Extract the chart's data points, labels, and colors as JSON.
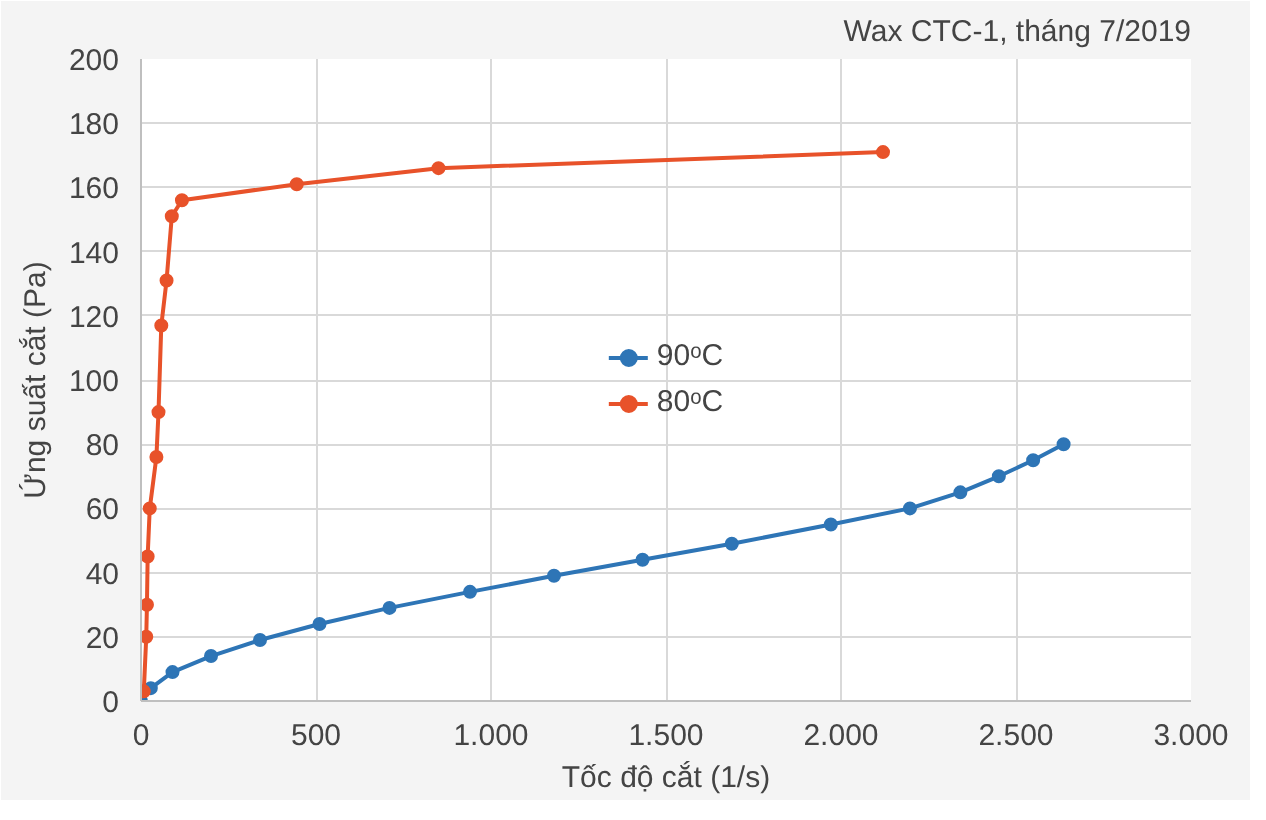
{
  "chart_data": {
    "type": "line",
    "title": "Wax CTC-1, tháng 7/2019",
    "xlabel": "Tốc độ cắt (1/s)",
    "ylabel": "Ứng suất cắt (Pa)",
    "series": [
      {
        "name": "90ᵒC",
        "color": "#2e75b6",
        "x": [
          0,
          28,
          90,
          200,
          340,
          510,
          710,
          940,
          1180,
          1433,
          1688,
          1971,
          2197,
          2341,
          2451,
          2549,
          2636
        ],
        "values": [
          0,
          4,
          9,
          14,
          19,
          24,
          29,
          34,
          39,
          44,
          49,
          55,
          60,
          65,
          70,
          75,
          80
        ]
      },
      {
        "name": "80ᵒC",
        "color": "#e8522a",
        "x": [
          8,
          15,
          17,
          19,
          25,
          44,
          50,
          58,
          73,
          88,
          117,
          445,
          850,
          2120
        ],
        "values": [
          3,
          20,
          30,
          45,
          60,
          76,
          90,
          117,
          131,
          151,
          156,
          161,
          166,
          171
        ]
      }
    ],
    "xlim": [
      0,
      3000
    ],
    "xticks": [
      {
        "value": 0,
        "label": "0"
      },
      {
        "value": 500,
        "label": "500"
      },
      {
        "value": 1000,
        "label": "1.000"
      },
      {
        "value": 1500,
        "label": "1.500"
      },
      {
        "value": 2000,
        "label": "2.000"
      },
      {
        "value": 2500,
        "label": "2.500"
      },
      {
        "value": 3000,
        "label": "3.000"
      }
    ],
    "ylim": [
      0,
      200
    ],
    "yticks": [
      0,
      20,
      40,
      60,
      80,
      100,
      120,
      140,
      160,
      180,
      200
    ],
    "grid": true,
    "legend": "center",
    "marker": "circle",
    "line_style": "solid"
  }
}
